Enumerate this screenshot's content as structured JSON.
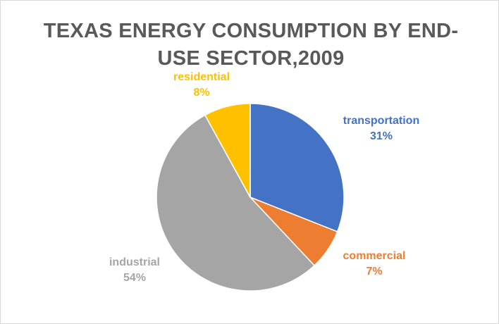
{
  "chart_data": {
    "type": "pie",
    "title": "TEXAS ENERGY CONSUMPTION BY END-USE SECTOR,2009",
    "slices": [
      {
        "name": "transportation",
        "value": 31,
        "label": "31%",
        "color": "#4472C4"
      },
      {
        "name": "commercial",
        "value": 7,
        "label": "7%",
        "color": "#ED7D31"
      },
      {
        "name": "industrial",
        "value": 54,
        "label": "54%",
        "color": "#A5A5A5"
      },
      {
        "name": "residential",
        "value": 8,
        "label": "8%",
        "color": "#FFC000"
      }
    ],
    "start_angle_deg": 0,
    "direction": "clockwise",
    "legend": "none",
    "data_labels": "outside"
  }
}
